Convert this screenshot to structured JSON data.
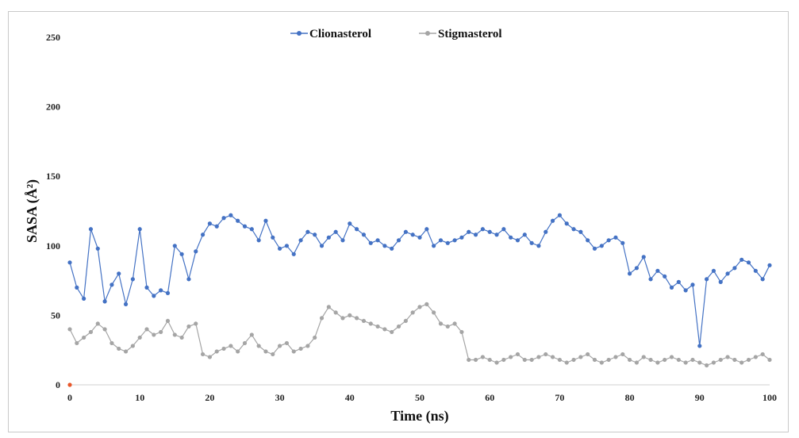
{
  "chart_data": {
    "type": "line",
    "title": "",
    "xlabel": "Time (ns)",
    "ylabel": "SASA (Å²)",
    "xlim": [
      0,
      100
    ],
    "ylim": [
      0,
      250
    ],
    "xticks": [
      0,
      10,
      20,
      30,
      40,
      50,
      60,
      70,
      80,
      90,
      100
    ],
    "yticks": [
      0,
      50,
      100,
      150,
      200,
      250
    ],
    "grid": false,
    "legend_position": "top-center",
    "origin_marker": {
      "x": 0,
      "y": 0,
      "color": "#e8572a"
    },
    "series": [
      {
        "name": "Clionasterol",
        "color": "#4472c4",
        "x": [
          0,
          1,
          2,
          3,
          4,
          5,
          6,
          7,
          8,
          9,
          10,
          11,
          12,
          13,
          14,
          15,
          16,
          17,
          18,
          19,
          20,
          21,
          22,
          23,
          24,
          25,
          26,
          27,
          28,
          29,
          30,
          31,
          32,
          33,
          34,
          35,
          36,
          37,
          38,
          39,
          40,
          41,
          42,
          43,
          44,
          45,
          46,
          47,
          48,
          49,
          50,
          51,
          52,
          53,
          54,
          55,
          56,
          57,
          58,
          59,
          60,
          61,
          62,
          63,
          64,
          65,
          66,
          67,
          68,
          69,
          70,
          71,
          72,
          73,
          74,
          75,
          76,
          77,
          78,
          79,
          80,
          81,
          82,
          83,
          84,
          85,
          86,
          87,
          88,
          89,
          90,
          91,
          92,
          93,
          94,
          95,
          96,
          97,
          98,
          99,
          100
        ],
        "y": [
          88,
          70,
          62,
          112,
          98,
          60,
          72,
          80,
          58,
          76,
          112,
          70,
          64,
          68,
          66,
          100,
          94,
          76,
          96,
          108,
          116,
          114,
          120,
          122,
          118,
          114,
          112,
          104,
          118,
          106,
          98,
          100,
          94,
          104,
          110,
          108,
          100,
          106,
          110,
          104,
          116,
          112,
          108,
          102,
          104,
          100,
          98,
          104,
          110,
          108,
          106,
          112,
          100,
          104,
          102,
          104,
          106,
          110,
          108,
          112,
          110,
          108,
          112,
          106,
          104,
          108,
          102,
          100,
          110,
          118,
          122,
          116,
          112,
          110,
          104,
          98,
          100,
          104,
          106,
          102,
          80,
          84,
          92,
          76,
          82,
          78,
          70,
          74,
          68,
          72,
          28,
          76,
          82,
          74,
          80,
          84,
          90,
          88,
          82,
          76,
          86
        ]
      },
      {
        "name": "Stigmasterol",
        "color": "#a5a5a5",
        "x": [
          0,
          1,
          2,
          3,
          4,
          5,
          6,
          7,
          8,
          9,
          10,
          11,
          12,
          13,
          14,
          15,
          16,
          17,
          18,
          19,
          20,
          21,
          22,
          23,
          24,
          25,
          26,
          27,
          28,
          29,
          30,
          31,
          32,
          33,
          34,
          35,
          36,
          37,
          38,
          39,
          40,
          41,
          42,
          43,
          44,
          45,
          46,
          47,
          48,
          49,
          50,
          51,
          52,
          53,
          54,
          55,
          56,
          57,
          58,
          59,
          60,
          61,
          62,
          63,
          64,
          65,
          66,
          67,
          68,
          69,
          70,
          71,
          72,
          73,
          74,
          75,
          76,
          77,
          78,
          79,
          80,
          81,
          82,
          83,
          84,
          85,
          86,
          87,
          88,
          89,
          90,
          91,
          92,
          93,
          94,
          95,
          96,
          97,
          98,
          99,
          100
        ],
        "y": [
          40,
          30,
          34,
          38,
          44,
          40,
          30,
          26,
          24,
          28,
          34,
          40,
          36,
          38,
          46,
          36,
          34,
          42,
          44,
          22,
          20,
          24,
          26,
          28,
          24,
          30,
          36,
          28,
          24,
          22,
          28,
          30,
          24,
          26,
          28,
          34,
          48,
          56,
          52,
          48,
          50,
          48,
          46,
          44,
          42,
          40,
          38,
          42,
          46,
          52,
          56,
          58,
          52,
          44,
          42,
          44,
          38,
          18,
          18,
          20,
          18,
          16,
          18,
          20,
          22,
          18,
          18,
          20,
          22,
          20,
          18,
          16,
          18,
          20,
          22,
          18,
          16,
          18,
          20,
          22,
          18,
          16,
          20,
          18,
          16,
          18,
          20,
          18,
          16,
          18,
          16,
          14,
          16,
          18,
          20,
          18,
          16,
          18,
          20,
          22,
          18
        ]
      }
    ]
  }
}
